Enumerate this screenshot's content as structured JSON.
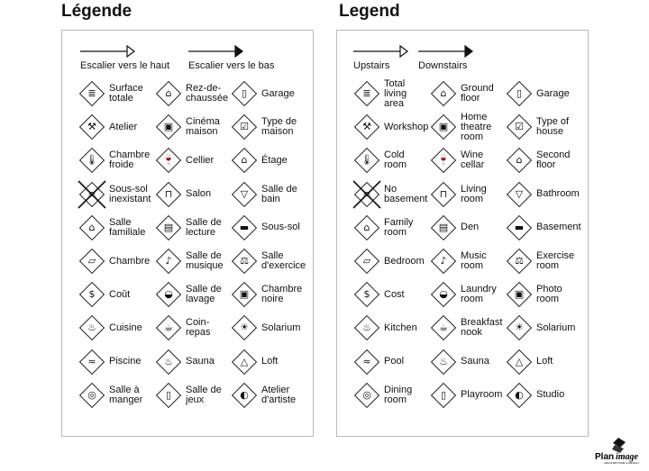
{
  "panels": [
    {
      "title": "Légende",
      "upstairs": "Escalier vers le haut",
      "downstairs": "Escalier vers le bas",
      "items": [
        [
          {
            "label": "Surface\ntotale",
            "icon": "total-area-icon"
          },
          {
            "label": "Rez-de-\nchaussée",
            "icon": "ground-floor-icon"
          },
          {
            "label": "Garage",
            "icon": "garage-icon"
          }
        ],
        [
          {
            "label": "Atelier",
            "icon": "workshop-hammer-icon"
          },
          {
            "label": "Cinéma\nmaison",
            "icon": "home-theatre-icon"
          },
          {
            "label": "Type de\nmaison",
            "icon": "house-type-checkbox-icon"
          }
        ],
        [
          {
            "label": "Chambre\nfroide",
            "icon": "thermometer-icon"
          },
          {
            "label": "Cellier",
            "icon": "wine-bottle-icon"
          },
          {
            "label": "Étage",
            "icon": "second-floor-icon"
          }
        ],
        [
          {
            "label": "Sous-sol\ninexistant",
            "icon": "no-basement-icon"
          },
          {
            "label": "Salon",
            "icon": "sofa-icon"
          },
          {
            "label": "Salle de\nbain",
            "icon": "bathtub-icon"
          }
        ],
        [
          {
            "label": "Salle\nfamiliale",
            "icon": "family-room-icon"
          },
          {
            "label": "Salle de\nlecture",
            "icon": "book-icon"
          },
          {
            "label": "Sous-sol",
            "icon": "basement-icon"
          }
        ],
        [
          {
            "label": "Chambre",
            "icon": "bed-icon"
          },
          {
            "label": "Salle de\nmusique",
            "icon": "music-note-icon"
          },
          {
            "label": "Salle\nd'exercice",
            "icon": "dumbbell-icon"
          }
        ],
        [
          {
            "label": "Coût",
            "icon": "dollar-icon"
          },
          {
            "label": "Salle de\nlavage",
            "icon": "laundry-icon"
          },
          {
            "label": "Chambre\nnoire",
            "icon": "camera-icon"
          }
        ],
        [
          {
            "label": "Cuisine",
            "icon": "cooking-pot-icon"
          },
          {
            "label": "Coin-\nrepas",
            "icon": "breakfast-cup-icon"
          },
          {
            "label": "Solarium",
            "icon": "sun-icon"
          }
        ],
        [
          {
            "label": "Piscine",
            "icon": "pool-icon"
          },
          {
            "label": "Sauna",
            "icon": "sauna-icon"
          },
          {
            "label": "Loft",
            "icon": "loft-icon"
          }
        ],
        [
          {
            "label": "Salle à\nmanger",
            "icon": "dining-plate-icon"
          },
          {
            "label": "Salle de\njeux",
            "icon": "game-icon"
          },
          {
            "label": "Atelier\nd'artiste",
            "icon": "palette-icon"
          }
        ]
      ]
    },
    {
      "title": "Legend",
      "upstairs": "Upstairs",
      "downstairs": "Downstairs",
      "items": [
        [
          {
            "label": "Total\nliving\narea",
            "icon": "total-area-icon"
          },
          {
            "label": "Ground\nfloor",
            "icon": "ground-floor-icon"
          },
          {
            "label": "Garage",
            "icon": "garage-icon"
          }
        ],
        [
          {
            "label": "Workshop",
            "icon": "workshop-hammer-icon"
          },
          {
            "label": "Home\ntheatre\nroom",
            "icon": "home-theatre-icon"
          },
          {
            "label": "Type of\nhouse",
            "icon": "house-type-checkbox-icon"
          }
        ],
        [
          {
            "label": "Cold\nroom",
            "icon": "thermometer-icon"
          },
          {
            "label": "Wine\ncellar",
            "icon": "wine-bottle-icon"
          },
          {
            "label": "Second\nfloor",
            "icon": "second-floor-icon"
          }
        ],
        [
          {
            "label": "No\nbasement",
            "icon": "no-basement-icon"
          },
          {
            "label": "Living\nroom",
            "icon": "sofa-icon"
          },
          {
            "label": "Bathroom",
            "icon": "bathtub-icon"
          }
        ],
        [
          {
            "label": "Family\nroom",
            "icon": "family-room-icon"
          },
          {
            "label": "Den",
            "icon": "book-icon"
          },
          {
            "label": "Basement",
            "icon": "basement-icon"
          }
        ],
        [
          {
            "label": "Bedroom",
            "icon": "bed-icon"
          },
          {
            "label": "Music\nroom",
            "icon": "music-note-icon"
          },
          {
            "label": "Exercise\nroom",
            "icon": "dumbbell-icon"
          }
        ],
        [
          {
            "label": "Cost",
            "icon": "dollar-icon"
          },
          {
            "label": "Laundry\nroom",
            "icon": "laundry-icon"
          },
          {
            "label": "Photo\nroom",
            "icon": "camera-icon"
          }
        ],
        [
          {
            "label": "Kitchen",
            "icon": "cooking-pot-icon"
          },
          {
            "label": "Breakfast\nnook",
            "icon": "breakfast-cup-icon"
          },
          {
            "label": "Solarium",
            "icon": "sun-icon"
          }
        ],
        [
          {
            "label": "Pool",
            "icon": "pool-icon"
          },
          {
            "label": "Sauna",
            "icon": "sauna-icon"
          },
          {
            "label": "Loft",
            "icon": "loft-icon"
          }
        ],
        [
          {
            "label": "Dining\nroom",
            "icon": "dining-plate-icon"
          },
          {
            "label": "Playroom",
            "icon": "game-icon"
          },
          {
            "label": "Studio",
            "icon": "palette-icon"
          }
        ]
      ]
    }
  ],
  "logo": {
    "text": "PlanImage",
    "subtext": "ARCHITECTURE & DESIGN"
  }
}
